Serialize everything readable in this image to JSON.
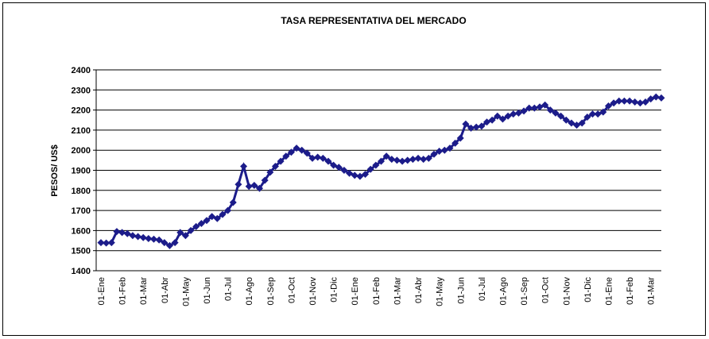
{
  "chart_data": {
    "type": "line",
    "title": "TASA REPRESENTATIVA DEL MERCADO",
    "y_label": "PESOS/ US$",
    "color": "#1c1c8a",
    "ylim": [
      1400,
      2400
    ],
    "yticks": [
      1400,
      1500,
      1600,
      1700,
      1800,
      1900,
      2000,
      2100,
      2200,
      2300,
      2400
    ],
    "grid": true,
    "categories": [
      "01-Ene",
      null,
      null,
      null,
      "01-Feb",
      null,
      null,
      null,
      "01-Mar",
      null,
      null,
      null,
      "01-Abr",
      null,
      null,
      null,
      "01-May",
      null,
      null,
      null,
      "01-Jun",
      null,
      null,
      null,
      "01-Jul",
      null,
      null,
      null,
      "01-Ago",
      null,
      null,
      null,
      "01-Sep",
      null,
      null,
      null,
      "01-Oct",
      null,
      null,
      null,
      "01-Nov",
      null,
      null,
      null,
      "01-Dic",
      null,
      null,
      null,
      "01-Ene",
      null,
      null,
      null,
      "01-Feb",
      null,
      null,
      null,
      "01-Mar",
      null,
      null,
      null,
      "01-Abr",
      null,
      null,
      null,
      "01-May",
      null,
      null,
      null,
      "01-Jun",
      null,
      null,
      null,
      "01-Jul",
      null,
      null,
      null,
      "01-Ago",
      null,
      null,
      null,
      "01-Sep",
      null,
      null,
      null,
      "01-Oct",
      null,
      null,
      null,
      "01-Nov",
      null,
      null,
      null,
      "01-Dic",
      null,
      null,
      null,
      "01-Ene",
      null,
      null,
      null,
      "01-Feb",
      null,
      null,
      null,
      "01-Mar",
      null,
      null
    ],
    "values": [
      1540,
      1538,
      1540,
      1595,
      1590,
      1585,
      1575,
      1570,
      1565,
      1560,
      1557,
      1553,
      1540,
      1525,
      1540,
      1590,
      1575,
      1600,
      1620,
      1635,
      1650,
      1670,
      1660,
      1680,
      1700,
      1740,
      1830,
      1920,
      1820,
      1825,
      1810,
      1850,
      1890,
      1920,
      1945,
      1970,
      1990,
      2010,
      2000,
      1985,
      1960,
      1965,
      1960,
      1945,
      1925,
      1915,
      1900,
      1885,
      1875,
      1870,
      1880,
      1905,
      1925,
      1945,
      1970,
      1955,
      1950,
      1945,
      1950,
      1955,
      1960,
      1955,
      1960,
      1980,
      1995,
      2000,
      2010,
      2035,
      2060,
      2130,
      2110,
      2115,
      2120,
      2140,
      2150,
      2170,
      2155,
      2170,
      2180,
      2185,
      2195,
      2210,
      2210,
      2215,
      2225,
      2200,
      2185,
      2170,
      2150,
      2135,
      2125,
      2135,
      2165,
      2180,
      2180,
      2190,
      2220,
      2235,
      2245,
      2245,
      2245,
      2240,
      2235,
      2240,
      2255,
      2265,
      2260
    ]
  }
}
